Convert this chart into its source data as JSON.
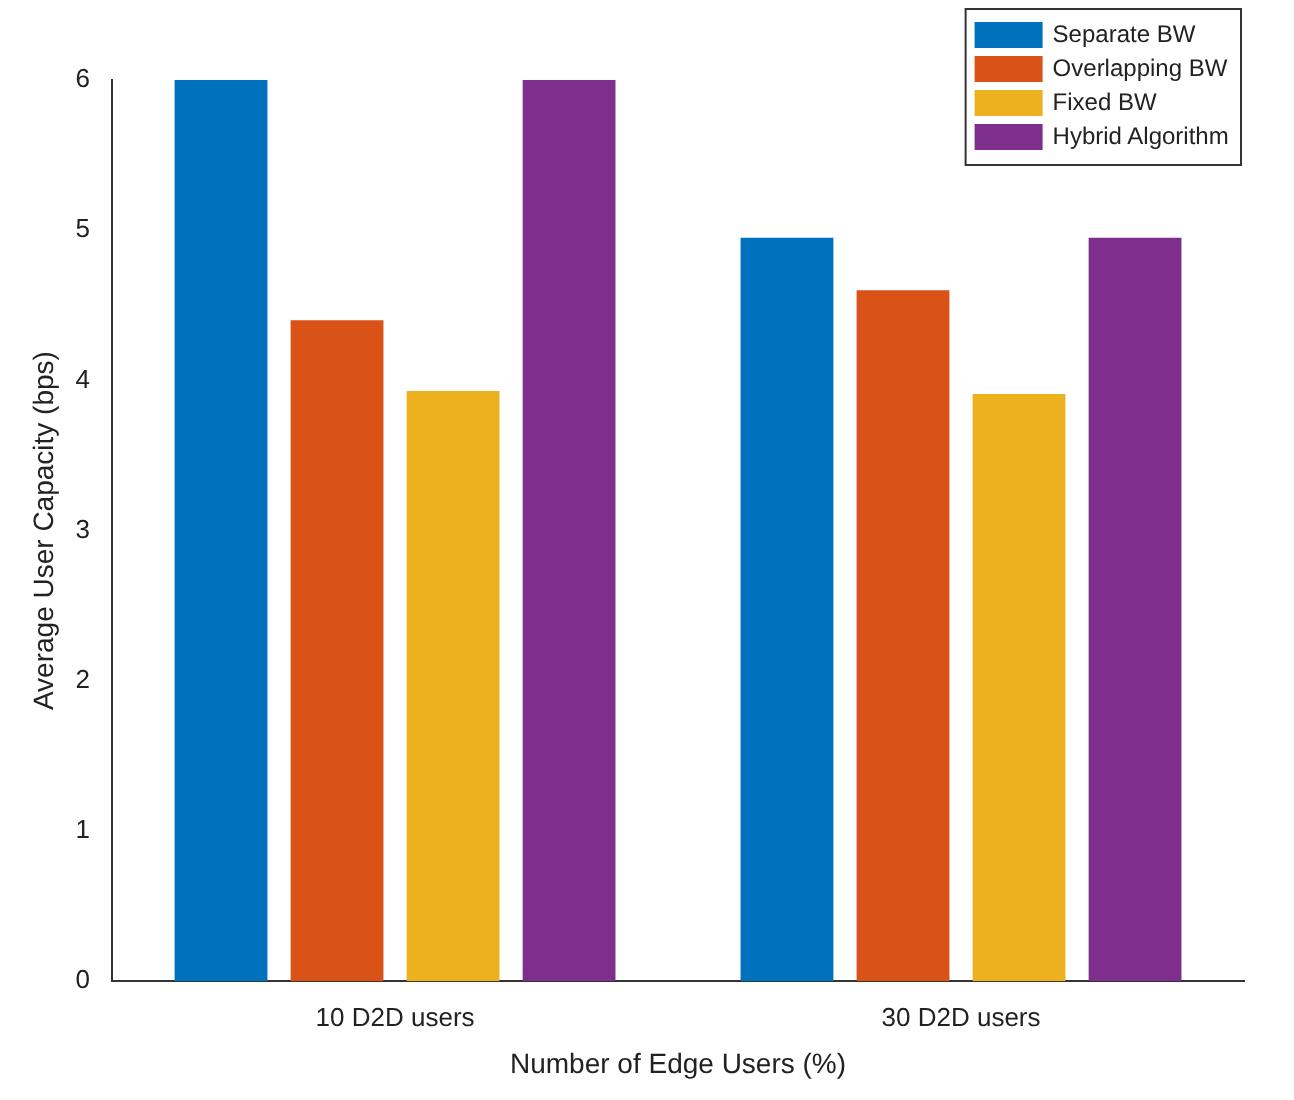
{
  "chart_data": {
    "type": "bar",
    "xlabel": "Number of Edge Users (%)",
    "ylabel": "Average User Capacity (bps)",
    "categories": [
      "10 D2D users",
      "30 D2D users"
    ],
    "series": [
      {
        "name": "Separate BW",
        "color": "#0072bd",
        "values": [
          6,
          4.95
        ]
      },
      {
        "name": "Overlapping BW",
        "color": "#d95319",
        "values": [
          4.4,
          4.6
        ]
      },
      {
        "name": "Fixed BW",
        "color": "#edb120",
        "values": [
          3.93,
          3.91
        ]
      },
      {
        "name": "Hybrid Algorithm",
        "color": "#7e2f8e",
        "values": [
          6,
          4.95
        ]
      }
    ],
    "ylim": [
      0,
      6
    ],
    "yticks": [
      0,
      1,
      2,
      3,
      4,
      5,
      6
    ],
    "grid": false,
    "legend": "top right"
  }
}
